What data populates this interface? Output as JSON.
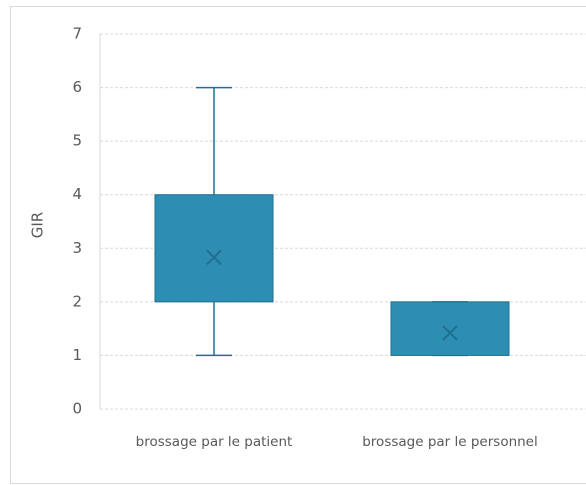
{
  "chart_data": {
    "type": "box",
    "y_label": "GIR",
    "categories": [
      "brossage par le patient",
      "brossage par le personnel"
    ],
    "boxes": [
      {
        "min": 1,
        "q1": 2,
        "q3": 4,
        "max": 6,
        "mean": 2.83
      },
      {
        "min": 1,
        "q1": 1,
        "q3": 2,
        "max": 2,
        "mean": 1.42
      }
    ],
    "color": "#2e8db3",
    "ylim": [
      0,
      7
    ],
    "yticks": [
      0,
      1,
      2,
      3,
      4,
      5,
      6,
      7
    ],
    "grid": true
  }
}
